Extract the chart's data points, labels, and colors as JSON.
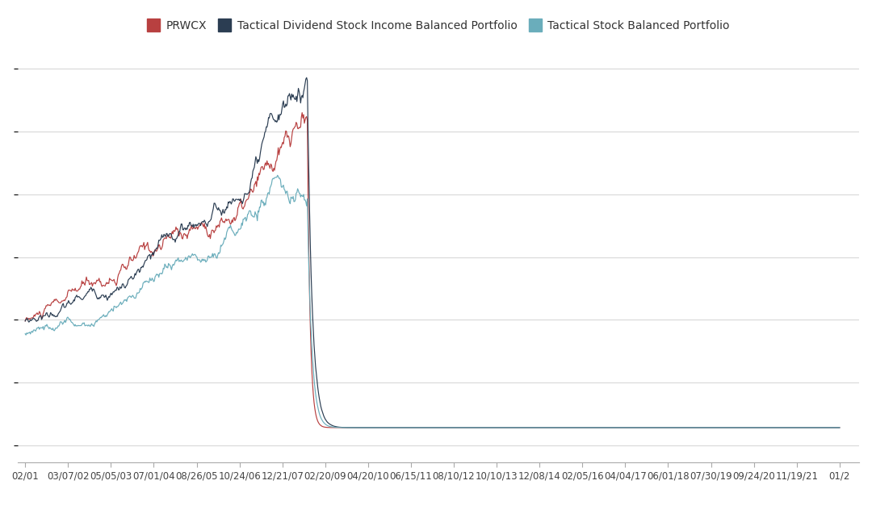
{
  "legend_labels": [
    "PRWCX",
    "Tactical Dividend Stock Income Balanced Portfolio",
    "Tactical Stock Balanced Portfolio"
  ],
  "line_colors": [
    "#b84040",
    "#2b3d52",
    "#6aadbb"
  ],
  "background_color": "#ffffff",
  "grid_color": "#d8d8d8",
  "x_tick_labels": [
    "02/01",
    "03/07/02",
    "05/05/03",
    "07/01/04",
    "08/26/05",
    "10/24/06",
    "12/21/07",
    "02/20/09",
    "04/20/10",
    "06/15/11",
    "08/10/12",
    "10/10/13",
    "12/08/14",
    "02/05/16",
    "04/04/17",
    "06/01/18",
    "07/30/19",
    "09/24/20",
    "11/19/21",
    "01/2"
  ],
  "legend_fontsize": 10,
  "tick_fontsize": 8.5,
  "figsize": [
    10.8,
    6.37
  ],
  "dpi": 100
}
